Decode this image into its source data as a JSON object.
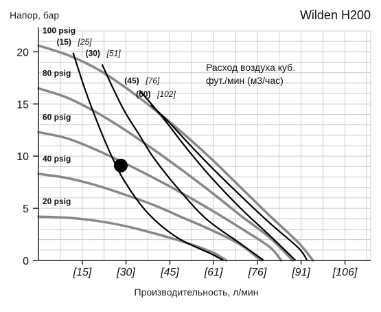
{
  "chart_data": {
    "type": "line",
    "title": "Wilden H200",
    "ylabel": "Напор, бар",
    "xlabel": "Производительность, л/мин",
    "xlim": [
      0,
      115
    ],
    "ylim": [
      0,
      22
    ],
    "grid": true,
    "yticks": [
      0,
      5,
      10,
      15,
      20
    ],
    "xticks": [
      {
        "value": 15.2,
        "label": "[15]"
      },
      {
        "value": 30.3,
        "label": "[30]"
      },
      {
        "value": 45.5,
        "label": "[45]"
      },
      {
        "value": 60.6,
        "label": "[61]"
      },
      {
        "value": 75.8,
        "label": "[76]"
      },
      {
        "value": 90.9,
        "label": "[91]"
      },
      {
        "value": 106.1,
        "label": "[106]"
      }
    ],
    "legend_text": [
      "Расход воздуха куб.",
      "фут./мин (м3/час)"
    ],
    "pressure_series": [
      {
        "name": "100 psig",
        "points": [
          [
            0,
            20.6
          ],
          [
            10,
            19.7
          ],
          [
            20,
            18.4
          ],
          [
            30,
            16.6
          ],
          [
            40,
            14.5
          ],
          [
            50,
            12.2
          ],
          [
            60,
            9.7
          ],
          [
            70,
            7.0
          ],
          [
            80,
            4.3
          ],
          [
            90,
            1.7
          ],
          [
            95,
            0.0
          ]
        ]
      },
      {
        "name": "80 psig",
        "points": [
          [
            0,
            16.5
          ],
          [
            10,
            15.6
          ],
          [
            20,
            14.2
          ],
          [
            30,
            12.5
          ],
          [
            40,
            10.6
          ],
          [
            50,
            8.6
          ],
          [
            60,
            6.5
          ],
          [
            70,
            4.3
          ],
          [
            80,
            2.2
          ],
          [
            88,
            0.0
          ]
        ]
      },
      {
        "name": "60 psig",
        "points": [
          [
            0,
            12.3
          ],
          [
            10,
            11.7
          ],
          [
            20,
            10.6
          ],
          [
            30,
            9.3
          ],
          [
            40,
            7.9
          ],
          [
            50,
            6.4
          ],
          [
            60,
            4.8
          ],
          [
            70,
            3.1
          ],
          [
            80,
            1.3
          ],
          [
            84,
            0.0
          ]
        ]
      },
      {
        "name": "40 psig",
        "points": [
          [
            0,
            8.3
          ],
          [
            10,
            7.9
          ],
          [
            20,
            7.2
          ],
          [
            30,
            6.3
          ],
          [
            40,
            5.3
          ],
          [
            50,
            4.1
          ],
          [
            60,
            2.9
          ],
          [
            70,
            1.5
          ],
          [
            77,
            0.0
          ]
        ]
      },
      {
        "name": "20 psig",
        "points": [
          [
            0,
            4.2
          ],
          [
            10,
            4.1
          ],
          [
            20,
            3.8
          ],
          [
            30,
            3.3
          ],
          [
            40,
            2.6
          ],
          [
            50,
            1.8
          ],
          [
            60,
            0.8
          ],
          [
            65,
            0.0
          ]
        ]
      }
    ],
    "air_series": [
      {
        "name": "(15)",
        "value": "[25]",
        "points": [
          [
            12,
            19.9
          ],
          [
            16,
            16.5
          ],
          [
            20,
            13.5
          ],
          [
            25,
            10.2
          ],
          [
            30,
            7.5
          ],
          [
            38,
            4.5
          ],
          [
            48,
            2.2
          ],
          [
            60,
            0.6
          ],
          [
            64,
            0.0
          ]
        ]
      },
      {
        "name": "(30)",
        "value": "[51]",
        "points": [
          [
            22,
            18.8
          ],
          [
            26,
            16.4
          ],
          [
            30,
            14.2
          ],
          [
            35,
            12.0
          ],
          [
            40,
            9.8
          ],
          [
            48,
            7.0
          ],
          [
            58,
            4.0
          ],
          [
            70,
            1.6
          ],
          [
            78,
            0.0
          ]
        ]
      },
      {
        "name": "(45)",
        "value": "[76]",
        "points": [
          [
            35,
            16.3
          ],
          [
            40,
            14.7
          ],
          [
            45,
            13.0
          ],
          [
            52,
            10.5
          ],
          [
            60,
            7.9
          ],
          [
            70,
            5.0
          ],
          [
            80,
            2.4
          ],
          [
            89,
            0.0
          ]
        ]
      },
      {
        "name": "(60)",
        "value": "[102]",
        "points": [
          [
            39,
            14.9
          ],
          [
            45,
            13.3
          ],
          [
            52,
            11.2
          ],
          [
            60,
            8.9
          ],
          [
            70,
            6.2
          ],
          [
            80,
            3.6
          ],
          [
            90,
            1.2
          ],
          [
            93,
            0.0
          ]
        ]
      }
    ],
    "operating_point": {
      "x": 28.5,
      "y": 9.1
    }
  }
}
